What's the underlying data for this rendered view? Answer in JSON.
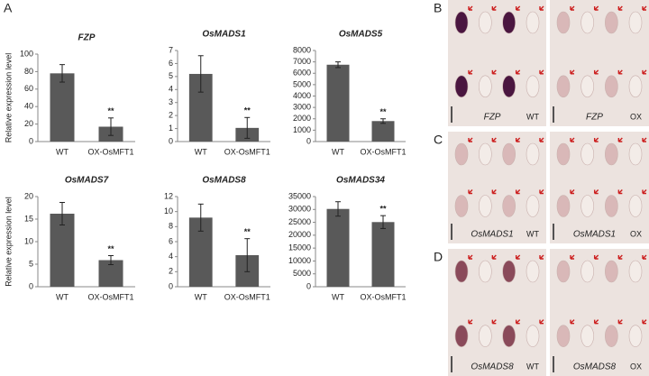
{
  "panel_label": "A",
  "chart_data": [
    {
      "type": "bar",
      "title": "FZP",
      "ylabel": "Relative expression level",
      "categories": [
        "WT",
        "OX-OsMFT1"
      ],
      "values": [
        78,
        17
      ],
      "errors": [
        10,
        10
      ],
      "significance": [
        null,
        "**"
      ],
      "color": "#595959",
      "ylim": [
        0,
        100
      ],
      "yticks": [
        0,
        20,
        40,
        60,
        80,
        100
      ]
    },
    {
      "type": "bar",
      "title": "OsMADS1",
      "categories": [
        "WT",
        "OX-OsMFT1"
      ],
      "values": [
        5.2,
        1.05
      ],
      "errors": [
        1.4,
        0.8
      ],
      "significance": [
        null,
        "**"
      ],
      "color": "#595959",
      "ylim": [
        0,
        7
      ],
      "yticks": [
        0,
        1,
        2,
        3,
        4,
        5,
        6,
        7
      ]
    },
    {
      "type": "bar",
      "title": "OsMADS5",
      "categories": [
        "WT",
        "OX-OsMFT1"
      ],
      "values": [
        6750,
        1800
      ],
      "errors": [
        250,
        200
      ],
      "significance": [
        null,
        "**"
      ],
      "color": "#595959",
      "ylim": [
        0,
        8000
      ],
      "yticks": [
        0,
        1000,
        2000,
        3000,
        4000,
        5000,
        6000,
        7000,
        8000
      ]
    },
    {
      "type": "bar",
      "title": "OsMADS7",
      "ylabel": "Relative expression level",
      "categories": [
        "WT",
        "OX-OsMFT1"
      ],
      "values": [
        16.2,
        5.9
      ],
      "errors": [
        2.5,
        1
      ],
      "significance": [
        null,
        "**"
      ],
      "color": "#595959",
      "ylim": [
        0,
        20
      ],
      "yticks": [
        0,
        5,
        10,
        15,
        20
      ]
    },
    {
      "type": "bar",
      "title": "OsMADS8",
      "categories": [
        "WT",
        "OX-OsMFT1"
      ],
      "values": [
        9.2,
        4.2
      ],
      "errors": [
        1.8,
        2.2
      ],
      "significance": [
        null,
        "**"
      ],
      "color": "#595959",
      "ylim": [
        0,
        12
      ],
      "yticks": [
        0,
        2,
        4,
        6,
        8,
        10,
        12
      ]
    },
    {
      "type": "bar",
      "title": "OsMADS34",
      "categories": [
        "WT",
        "OX-OsMFT1"
      ],
      "values": [
        30200,
        25100
      ],
      "errors": [
        2800,
        2500
      ],
      "significance": [
        null,
        "**"
      ],
      "color": "#595959",
      "ylim": [
        0,
        35000
      ],
      "yticks": [
        0,
        5000,
        10000,
        15000,
        20000,
        25000,
        30000,
        35000
      ]
    }
  ],
  "image_panels": [
    {
      "label": "B",
      "images": [
        {
          "gene": "FZP",
          "genotype": "WT"
        },
        {
          "gene": "FZP",
          "genotype": "OX"
        }
      ]
    },
    {
      "label": "C",
      "images": [
        {
          "gene": "OsMADS1",
          "genotype": "WT"
        },
        {
          "gene": "OsMADS1",
          "genotype": "OX"
        }
      ]
    },
    {
      "label": "D",
      "images": [
        {
          "gene": "OsMADS8",
          "genotype": "WT"
        },
        {
          "gene": "OsMADS8",
          "genotype": "OX"
        }
      ]
    }
  ]
}
